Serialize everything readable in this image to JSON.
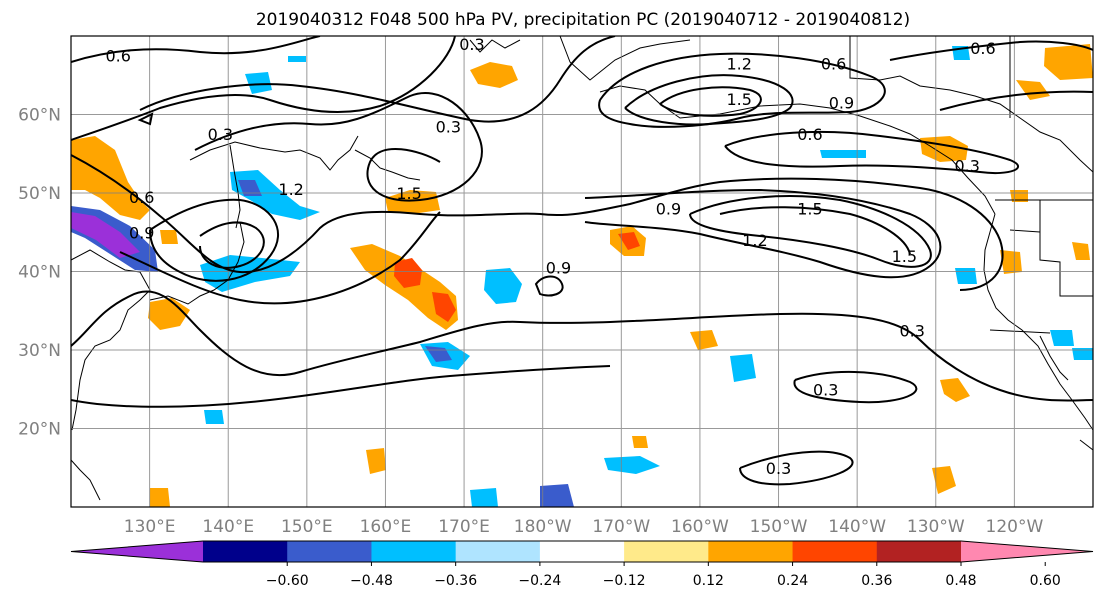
{
  "map": {
    "title": "2019040312 F048 500 hPa PV, precipitation PC (2019040712 - 2019040812)",
    "lat_labels": [
      "60°N",
      "50°N",
      "40°N",
      "30°N",
      "20°N"
    ],
    "lat_values": [
      60,
      50,
      40,
      30,
      20
    ],
    "lon_labels": [
      "130°E",
      "140°E",
      "150°E",
      "160°E",
      "170°E",
      "180°W",
      "170°W",
      "160°W",
      "150°W",
      "140°W",
      "130°W",
      "120°W"
    ],
    "lon_values": [
      130,
      140,
      150,
      160,
      170,
      180,
      190,
      200,
      210,
      220,
      230,
      240
    ],
    "extent": {
      "lon_min": 120,
      "lon_max": 250,
      "lat_min": 10,
      "lat_max": 70
    },
    "grid": true,
    "contour_labels": [
      {
        "text": "0.6",
        "lon": 126,
        "lat": 67.5
      },
      {
        "text": "0.3",
        "lon": 171,
        "lat": 69
      },
      {
        "text": "1.2",
        "lon": 205,
        "lat": 66.5
      },
      {
        "text": "0.6",
        "lon": 217,
        "lat": 66.5
      },
      {
        "text": "0.6",
        "lon": 236,
        "lat": 68.5
      },
      {
        "text": "1.5",
        "lon": 205,
        "lat": 62
      },
      {
        "text": "0.9",
        "lon": 218,
        "lat": 61.5
      },
      {
        "text": "0.3",
        "lon": 139,
        "lat": 57.5
      },
      {
        "text": "0.3",
        "lon": 168,
        "lat": 58.5
      },
      {
        "text": "0.6",
        "lon": 214,
        "lat": 57.5
      },
      {
        "text": "0.3",
        "lon": 234,
        "lat": 53.5
      },
      {
        "text": "1.2",
        "lon": 148,
        "lat": 50.5
      },
      {
        "text": "1.5",
        "lon": 163,
        "lat": 50
      },
      {
        "text": "0.6",
        "lon": 129,
        "lat": 49.5
      },
      {
        "text": "0.9",
        "lon": 129,
        "lat": 45
      },
      {
        "text": "0.9",
        "lon": 196,
        "lat": 48
      },
      {
        "text": "1.5",
        "lon": 214,
        "lat": 48
      },
      {
        "text": "1.2",
        "lon": 207,
        "lat": 44
      },
      {
        "text": "1.5",
        "lon": 226,
        "lat": 42
      },
      {
        "text": "0.9",
        "lon": 182,
        "lat": 40.5
      },
      {
        "text": "0.3",
        "lon": 227,
        "lat": 32.5
      },
      {
        "text": "0.3",
        "lon": 216,
        "lat": 25
      },
      {
        "text": "0.3",
        "lon": 210,
        "lat": 15
      }
    ]
  },
  "colorbar": {
    "tick_labels": [
      "−0.60",
      "−0.48",
      "−0.36",
      "−0.24",
      "−0.12",
      "0.12",
      "0.24",
      "0.36",
      "0.48",
      "0.60"
    ],
    "ticks": [
      -0.6,
      -0.48,
      -0.36,
      -0.24,
      -0.12,
      0.12,
      0.24,
      0.36,
      0.48,
      0.6
    ],
    "colors": [
      "#9b30d9",
      "#00008b",
      "#3a5ccc",
      "#00bfff",
      "#afe4ff",
      "#ffffff",
      "#ffea8a",
      "#ffa500",
      "#ff4500",
      "#b22222",
      "#ff88b0"
    ]
  }
}
